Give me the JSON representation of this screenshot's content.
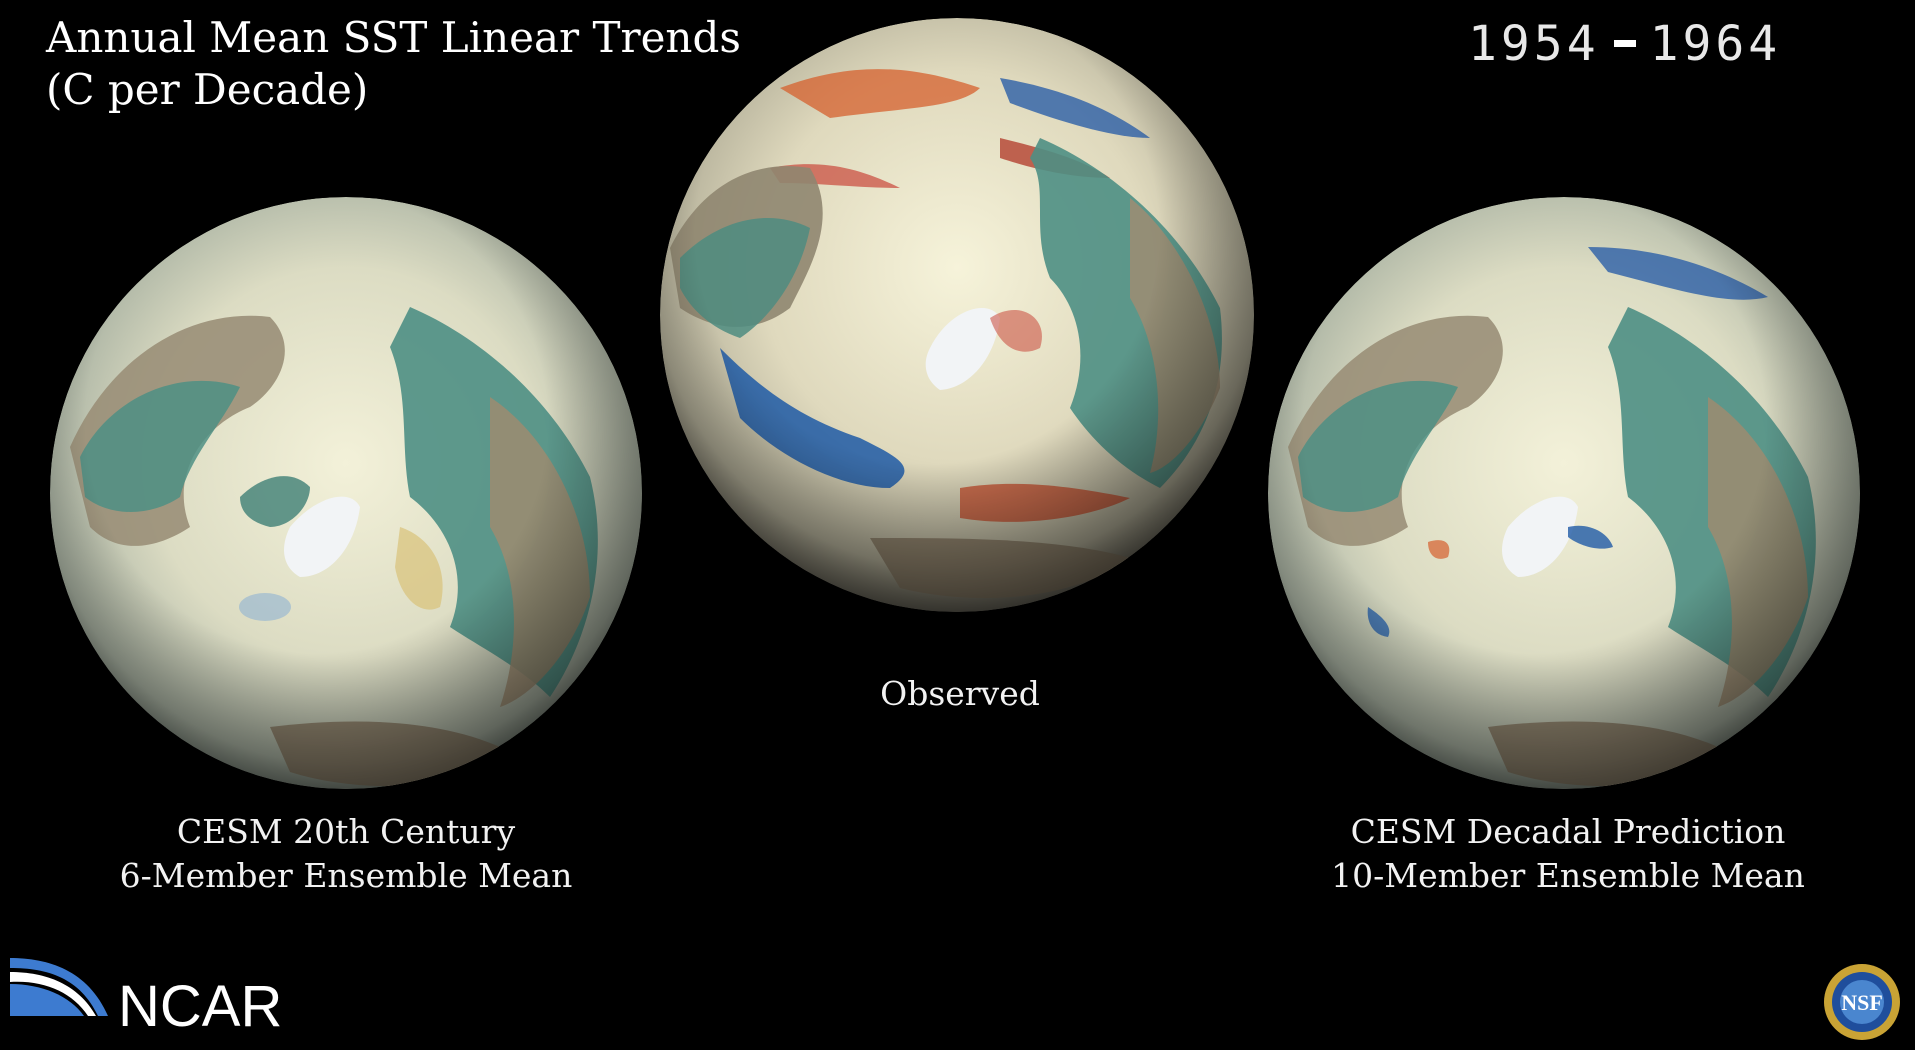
{
  "title": {
    "line1": "Annual Mean SST Linear Trends",
    "line2": "(C per Decade)"
  },
  "years": {
    "start": "1954",
    "end": "1964"
  },
  "globes": [
    {
      "id": "cesm-20th-century",
      "caption_line1": "CESM 20th Century",
      "caption_line2": "6-Member Ensemble Mean"
    },
    {
      "id": "observed",
      "caption_line1": "Observed",
      "caption_line2": ""
    },
    {
      "id": "cesm-decadal-prediction",
      "caption_line1": "CESM Decadal Prediction",
      "caption_line2": "10-Member Ensemble Mean"
    }
  ],
  "logos": {
    "ncar": "NCAR",
    "nsf": "NSF"
  },
  "colors": {
    "background": "#000000",
    "ocean_neutral": "#e9e6c9",
    "warm_trend": "#c0392b",
    "cool_trend": "#1f4e9c",
    "land": "#4e8f84",
    "ice": "#f4f6f8"
  }
}
